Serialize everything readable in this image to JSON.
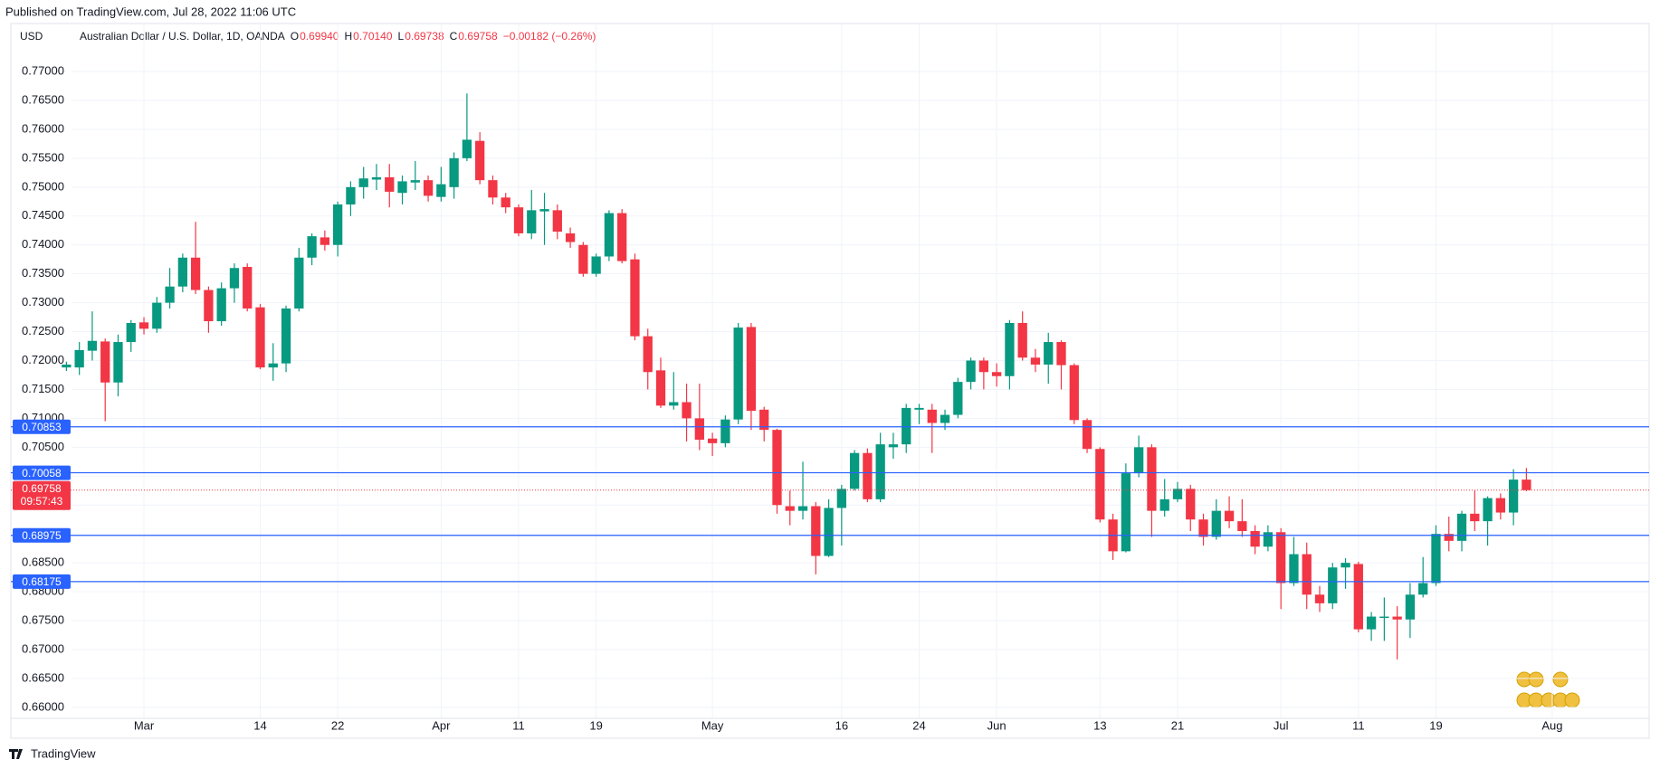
{
  "header": {
    "published": "Published on TradingView.com, Jul 28, 2022 11:06 UTC",
    "currency": "USD",
    "symbol": "Australian Dollar / U.S. Dollar, 1D, OANDA",
    "legend": [
      {
        "key": "O",
        "value": "0.69940"
      },
      {
        "key": "H",
        "value": "0.70140"
      },
      {
        "key": "L",
        "value": "0.69738"
      },
      {
        "key": "C",
        "value": "0.69758"
      }
    ],
    "change": "−0.00182 (−0.26%)",
    "brand": "TradingView"
  },
  "chart_data": {
    "type": "candlestick",
    "up_color": "#089981",
    "down_color": "#f23645",
    "grid": true,
    "open": [
      0.7188,
      0.7188,
      0.7217,
      0.7233,
      0.7162,
      0.7232,
      0.7266,
      0.7255,
      0.73,
      0.7328,
      0.7378,
      0.7322,
      0.7268,
      0.7325,
      0.7362,
      0.7292,
      0.7188,
      0.7195,
      0.729,
      0.7378,
      0.7413,
      0.74,
      0.747,
      0.75,
      0.7513,
      0.7517,
      0.749,
      0.7508,
      0.7512,
      0.7483,
      0.75,
      0.755,
      0.758,
      0.7512,
      0.7482,
      0.7465,
      0.742,
      0.7458,
      0.746,
      0.742,
      0.74,
      0.735,
      0.738,
      0.7455,
      0.7375,
      0.7242,
      0.7183,
      0.7122,
      0.7128,
      0.71,
      0.7065,
      0.7057,
      0.7098,
      0.7258,
      0.7115,
      0.708,
      0.6948,
      0.694,
      0.6948,
      0.6862,
      0.6945,
      0.6978,
      0.704,
      0.696,
      0.705,
      0.7055,
      0.7115,
      0.7115,
      0.7092,
      0.7106,
      0.7163,
      0.72,
      0.718,
      0.7173,
      0.7265,
      0.7205,
      0.7193,
      0.7232,
      0.7192,
      0.7097,
      0.7047,
      0.6925,
      0.687,
      0.7005,
      0.705,
      0.694,
      0.696,
      0.6978,
      0.6925,
      0.6895,
      0.694,
      0.6922,
      0.6905,
      0.6878,
      0.6903,
      0.6815,
      0.6865,
      0.6795,
      0.678,
      0.6842,
      0.6848,
      0.6735,
      0.6755,
      0.6757,
      0.6752,
      0.6795,
      0.6815,
      0.69,
      0.6888,
      0.6935,
      0.6922,
      0.6962,
      0.6937,
      0.6994
    ],
    "high": [
      0.7198,
      0.7232,
      0.7285,
      0.7238,
      0.7245,
      0.727,
      0.7275,
      0.731,
      0.736,
      0.7385,
      0.744,
      0.7328,
      0.7335,
      0.7368,
      0.7368,
      0.7298,
      0.723,
      0.7295,
      0.7395,
      0.742,
      0.7425,
      0.7475,
      0.751,
      0.7535,
      0.754,
      0.754,
      0.752,
      0.7545,
      0.752,
      0.7535,
      0.756,
      0.7662,
      0.7595,
      0.752,
      0.749,
      0.747,
      0.7495,
      0.749,
      0.747,
      0.743,
      0.7405,
      0.7385,
      0.746,
      0.7462,
      0.7385,
      0.7255,
      0.7205,
      0.718,
      0.716,
      0.716,
      0.7075,
      0.7105,
      0.7265,
      0.7265,
      0.712,
      0.7082,
      0.6975,
      0.7025,
      0.6955,
      0.696,
      0.6985,
      0.7045,
      0.7048,
      0.7075,
      0.7075,
      0.7125,
      0.7125,
      0.7125,
      0.7115,
      0.717,
      0.7205,
      0.7205,
      0.7195,
      0.727,
      0.7285,
      0.722,
      0.7248,
      0.7235,
      0.7195,
      0.71,
      0.705,
      0.6935,
      0.7022,
      0.707,
      0.7055,
      0.6995,
      0.699,
      0.6985,
      0.6935,
      0.696,
      0.6965,
      0.696,
      0.6915,
      0.6915,
      0.691,
      0.6895,
      0.6885,
      0.681,
      0.685,
      0.6858,
      0.6852,
      0.6765,
      0.679,
      0.6775,
      0.6815,
      0.686,
      0.6915,
      0.693,
      0.694,
      0.6975,
      0.6965,
      0.697,
      0.7012,
      0.7014
    ],
    "low": [
      0.7182,
      0.7175,
      0.72,
      0.7095,
      0.7138,
      0.7215,
      0.7245,
      0.7248,
      0.729,
      0.7318,
      0.7315,
      0.7248,
      0.726,
      0.73,
      0.7285,
      0.7185,
      0.7165,
      0.718,
      0.7285,
      0.7365,
      0.739,
      0.738,
      0.745,
      0.748,
      0.7495,
      0.7465,
      0.747,
      0.7495,
      0.7475,
      0.7475,
      0.748,
      0.7545,
      0.7505,
      0.747,
      0.7455,
      0.7415,
      0.741,
      0.74,
      0.741,
      0.7395,
      0.7345,
      0.7345,
      0.7372,
      0.7368,
      0.7235,
      0.715,
      0.7118,
      0.7115,
      0.706,
      0.7045,
      0.7035,
      0.705,
      0.709,
      0.708,
      0.706,
      0.6935,
      0.6915,
      0.6925,
      0.683,
      0.686,
      0.688,
      0.6975,
      0.6955,
      0.6955,
      0.703,
      0.704,
      0.709,
      0.704,
      0.708,
      0.71,
      0.715,
      0.715,
      0.7155,
      0.715,
      0.72,
      0.718,
      0.716,
      0.715,
      0.709,
      0.704,
      0.692,
      0.6855,
      0.6868,
      0.6998,
      0.6895,
      0.693,
      0.6955,
      0.6905,
      0.688,
      0.689,
      0.691,
      0.6895,
      0.6865,
      0.687,
      0.677,
      0.681,
      0.677,
      0.6765,
      0.677,
      0.6805,
      0.673,
      0.6715,
      0.6715,
      0.6683,
      0.672,
      0.679,
      0.681,
      0.687,
      0.687,
      0.6905,
      0.688,
      0.6925,
      0.6915,
      0.69738
    ],
    "close": [
      0.7193,
      0.7218,
      0.7234,
      0.7162,
      0.7232,
      0.7265,
      0.7255,
      0.73,
      0.7328,
      0.7378,
      0.7322,
      0.7268,
      0.7325,
      0.736,
      0.729,
      0.7188,
      0.7195,
      0.729,
      0.7378,
      0.7415,
      0.74,
      0.747,
      0.75,
      0.7515,
      0.7517,
      0.7492,
      0.751,
      0.7512,
      0.7485,
      0.7505,
      0.755,
      0.7582,
      0.7512,
      0.7482,
      0.7465,
      0.742,
      0.746,
      0.7462,
      0.7423,
      0.7405,
      0.735,
      0.738,
      0.7455,
      0.7372,
      0.7242,
      0.718,
      0.7122,
      0.7128,
      0.71,
      0.7063,
      0.7057,
      0.7098,
      0.7257,
      0.7113,
      0.708,
      0.695,
      0.694,
      0.6948,
      0.6862,
      0.6945,
      0.6978,
      0.704,
      0.696,
      0.7055,
      0.7055,
      0.7118,
      0.7118,
      0.7092,
      0.7106,
      0.7163,
      0.72,
      0.718,
      0.7173,
      0.7265,
      0.7205,
      0.7193,
      0.7232,
      0.7192,
      0.7097,
      0.7047,
      0.6925,
      0.687,
      0.7005,
      0.705,
      0.694,
      0.696,
      0.6978,
      0.6925,
      0.6895,
      0.694,
      0.6922,
      0.6905,
      0.6878,
      0.6903,
      0.6815,
      0.6865,
      0.6795,
      0.678,
      0.6842,
      0.685,
      0.6735,
      0.6757,
      0.6757,
      0.6752,
      0.6795,
      0.6815,
      0.69,
      0.6888,
      0.6935,
      0.6922,
      0.6962,
      0.6937,
      0.6994,
      0.69758
    ],
    "xlim": [
      -4.3,
      122.5
    ],
    "ylim": [
      0.6581,
      0.7783
    ],
    "xticks": [
      {
        "value": 6,
        "label": "Mar"
      },
      {
        "value": 15,
        "label": "14"
      },
      {
        "value": 21,
        "label": "22"
      },
      {
        "value": 29,
        "label": "Apr"
      },
      {
        "value": 35,
        "label": "11"
      },
      {
        "value": 41,
        "label": "19"
      },
      {
        "value": 50,
        "label": "May"
      },
      {
        "value": 60,
        "label": "16"
      },
      {
        "value": 66,
        "label": "24"
      },
      {
        "value": 72,
        "label": "Jun"
      },
      {
        "value": 80,
        "label": "13"
      },
      {
        "value": 86,
        "label": "21"
      },
      {
        "value": 94,
        "label": "Jul"
      },
      {
        "value": 100,
        "label": "11"
      },
      {
        "value": 106,
        "label": "19"
      },
      {
        "value": 115,
        "label": "Aug"
      }
    ],
    "yticks": [
      {
        "value": 0.66,
        "label": "0.66000"
      },
      {
        "value": 0.665,
        "label": "0.66500"
      },
      {
        "value": 0.67,
        "label": "0.67000"
      },
      {
        "value": 0.675,
        "label": "0.67500"
      },
      {
        "value": 0.68,
        "label": "0.68000"
      },
      {
        "value": 0.685,
        "label": "0.68500"
      },
      {
        "value": 0.69,
        "label": "0.69000"
      },
      {
        "value": 0.695,
        "label": "0.69500"
      },
      {
        "value": 0.7,
        "label": "0.70000"
      },
      {
        "value": 0.705,
        "label": "0.70500"
      },
      {
        "value": 0.71,
        "label": "0.71000"
      },
      {
        "value": 0.715,
        "label": "0.71500"
      },
      {
        "value": 0.72,
        "label": "0.72000"
      },
      {
        "value": 0.725,
        "label": "0.72500"
      },
      {
        "value": 0.73,
        "label": "0.73000"
      },
      {
        "value": 0.735,
        "label": "0.73500"
      },
      {
        "value": 0.74,
        "label": "0.74000"
      },
      {
        "value": 0.745,
        "label": "0.74500"
      },
      {
        "value": 0.75,
        "label": "0.75000"
      },
      {
        "value": 0.755,
        "label": "0.75500"
      },
      {
        "value": 0.76,
        "label": "0.76000"
      },
      {
        "value": 0.765,
        "label": "0.76500"
      },
      {
        "value": 0.77,
        "label": "0.77000"
      }
    ],
    "hlines": [
      0.70853,
      0.70058,
      0.68975,
      0.68175
    ],
    "hline_color": "#2962ff",
    "last": {
      "value": 0.69758,
      "countdown": "09:57:43",
      "color": "#f23645"
    }
  }
}
